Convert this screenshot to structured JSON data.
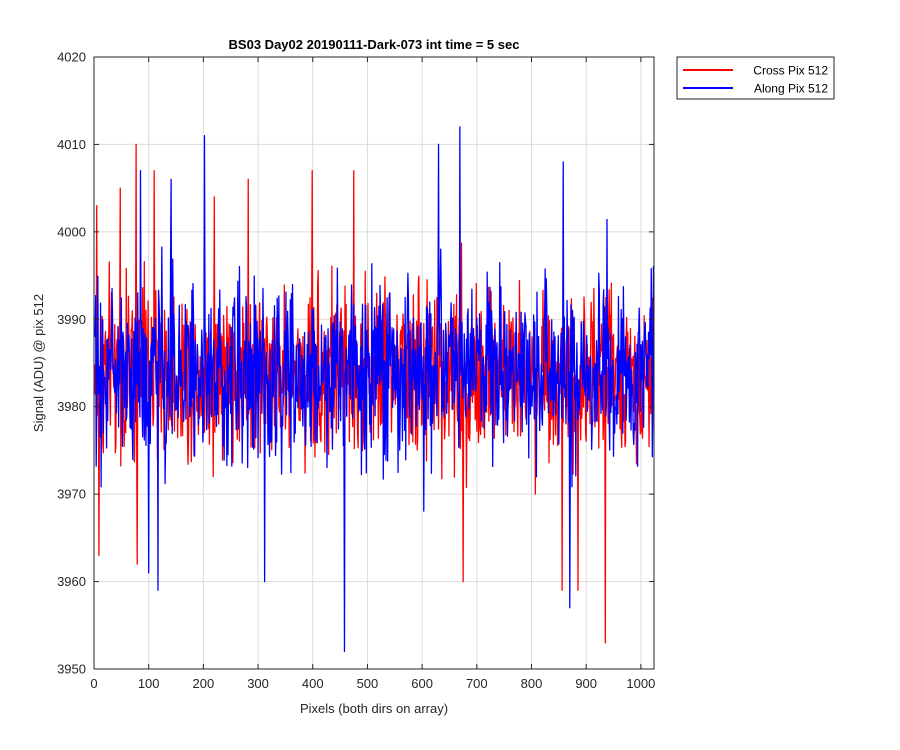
{
  "chart_data": {
    "type": "line",
    "title": "BS03 Day02 20190111-Dark-073 int time = 5 sec",
    "xlabel": "Pixels (both dirs on array)",
    "ylabel": "Signal (ADU) @ pix 512",
    "xlim": [
      0,
      1024
    ],
    "ylim": [
      3950,
      4020
    ],
    "xticks": [
      0,
      100,
      200,
      300,
      400,
      500,
      600,
      700,
      800,
      900,
      1000
    ],
    "yticks": [
      3950,
      3960,
      3970,
      3980,
      3990,
      4000,
      4010,
      4020
    ],
    "grid": true,
    "legend_position": "outside top-right",
    "series": [
      {
        "name": "Cross Pix 512",
        "color": "#ff0000",
        "x_range": [
          1,
          1024
        ],
        "mean": 3984,
        "min": 3953,
        "max": 4010,
        "spikes": [
          [
            5,
            4003
          ],
          [
            9,
            3963
          ],
          [
            48,
            4005
          ],
          [
            77,
            4010
          ],
          [
            79,
            3962
          ],
          [
            110,
            4007
          ],
          [
            220,
            4004
          ],
          [
            282,
            4006
          ],
          [
            399,
            4007
          ],
          [
            475,
            4007
          ],
          [
            675,
            3960
          ],
          [
            856,
            3959
          ],
          [
            885,
            3959
          ],
          [
            935,
            3953
          ]
        ]
      },
      {
        "name": "Along Pix 512",
        "color": "#0000ff",
        "x_range": [
          1,
          1024
        ],
        "mean": 3984,
        "min": 3952,
        "max": 4012,
        "spikes": [
          [
            85,
            4007
          ],
          [
            100,
            3961
          ],
          [
            117,
            3959
          ],
          [
            141,
            4006
          ],
          [
            202,
            4011
          ],
          [
            312,
            3960
          ],
          [
            458,
            3952
          ],
          [
            630,
            4010
          ],
          [
            669,
            4012
          ],
          [
            858,
            4008
          ],
          [
            870,
            3957
          ]
        ]
      }
    ]
  }
}
